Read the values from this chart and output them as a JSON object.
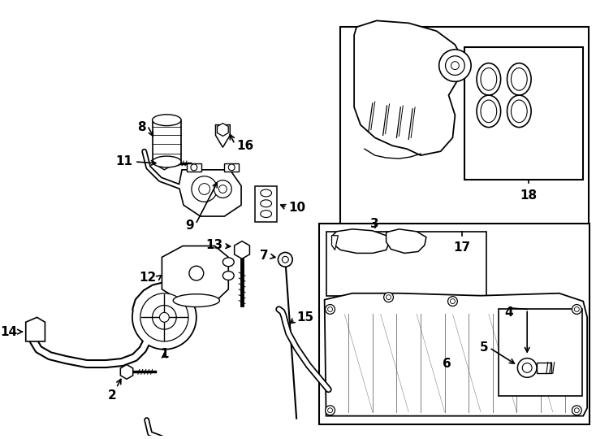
{
  "bg_color": "#ffffff",
  "line_color": "#000000",
  "label_fontsize": 11,
  "fig_width": 7.34,
  "fig_height": 5.4,
  "dpi": 100
}
